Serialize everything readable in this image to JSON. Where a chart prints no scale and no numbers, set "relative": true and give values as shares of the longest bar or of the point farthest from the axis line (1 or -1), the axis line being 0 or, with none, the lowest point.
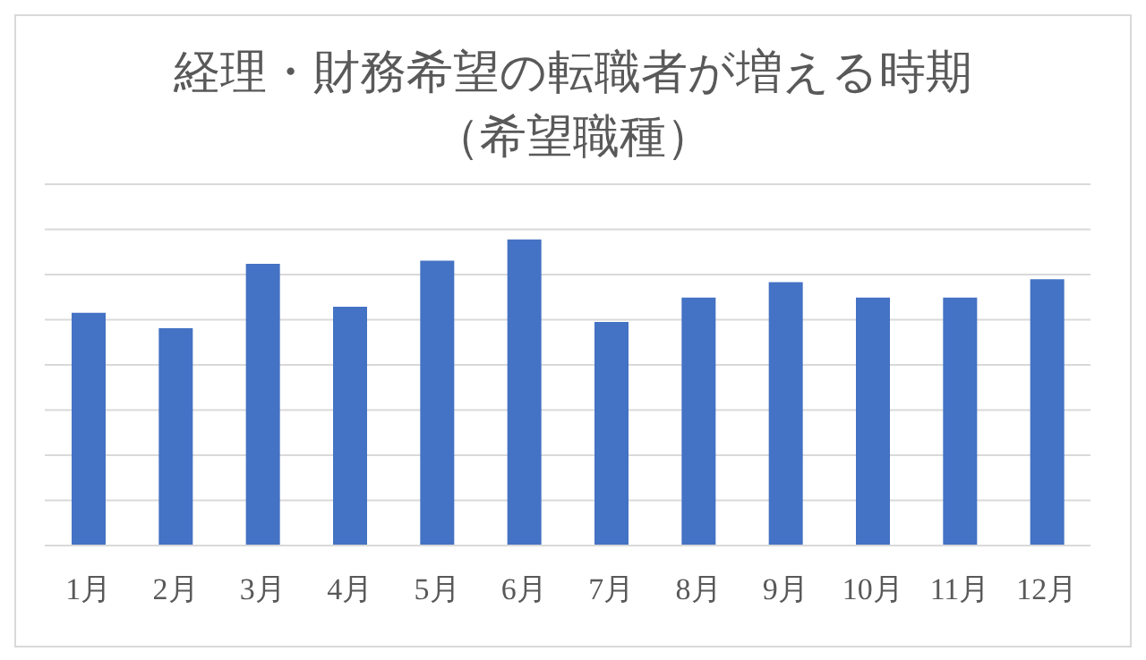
{
  "chart_data": {
    "type": "bar",
    "title": "経理・財務希望の転職者が増える時期",
    "subtitle": "（希望職種）",
    "categories": [
      "1月",
      "2月",
      "3月",
      "4月",
      "5月",
      "6月",
      "7月",
      "8月",
      "9月",
      "10月",
      "11月",
      "12月"
    ],
    "values": [
      0.76,
      0.71,
      0.92,
      0.78,
      0.93,
      1,
      0.73,
      0.81,
      0.86,
      0.81,
      0.81,
      0.87
    ],
    "color": "#4472c4",
    "relative": true,
    "grid": "y"
  }
}
